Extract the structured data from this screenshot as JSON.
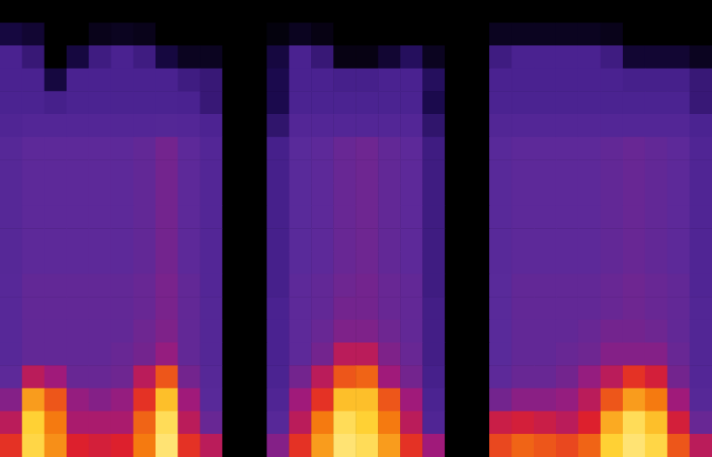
{
  "chart_data": {
    "type": "heatmap",
    "categories": [
      null,
      null,
      null,
      null,
      null,
      null,
      null,
      null,
      null,
      null,
      null,
      null,
      null,
      null,
      null,
      null,
      null,
      null,
      null,
      null,
      null,
      null,
      null,
      null,
      null,
      null,
      null,
      null,
      null,
      null,
      null,
      null
    ],
    "y_categories": [
      null,
      null,
      null,
      null,
      null,
      null,
      null,
      null,
      null,
      null,
      null,
      null,
      null,
      null,
      null,
      null,
      null,
      null,
      null,
      null
    ],
    "cells": [
      [
        0,
        0,
        0,
        0,
        0,
        0,
        0,
        0,
        0,
        0,
        0,
        0,
        0,
        0,
        0,
        0,
        0,
        0,
        0,
        0,
        0,
        0,
        0,
        0,
        0,
        0,
        0,
        0,
        0,
        0,
        0,
        0
      ],
      [
        10,
        8,
        0,
        0,
        4,
        5,
        4,
        0,
        0,
        0,
        0,
        0,
        2,
        5,
        3,
        0,
        0,
        0,
        0,
        0,
        0,
        0,
        5,
        5,
        5,
        5,
        5,
        4,
        0,
        0,
        0,
        0
      ],
      [
        25,
        20,
        0,
        10,
        22,
        25,
        22,
        10,
        5,
        5,
        0,
        0,
        10,
        25,
        20,
        3,
        3,
        8,
        15,
        5,
        0,
        0,
        22,
        25,
        25,
        25,
        25,
        22,
        8,
        8,
        8,
        5
      ],
      [
        25,
        25,
        10,
        25,
        25,
        25,
        25,
        25,
        22,
        20,
        0,
        0,
        12,
        25,
        25,
        24,
        24,
        25,
        25,
        15,
        0,
        0,
        25,
        25,
        25,
        25,
        25,
        25,
        24,
        24,
        24,
        20
      ],
      [
        26,
        26,
        24,
        26,
        26,
        26,
        26,
        26,
        25,
        20,
        0,
        0,
        12,
        26,
        26,
        26,
        26,
        26,
        26,
        12,
        0,
        0,
        26,
        26,
        26,
        26,
        26,
        26,
        26,
        26,
        26,
        20
      ],
      [
        30,
        32,
        32,
        32,
        32,
        32,
        32,
        33,
        32,
        27,
        0,
        0,
        18,
        32,
        32,
        32,
        32,
        32,
        32,
        18,
        0,
        0,
        31,
        32,
        32,
        32,
        32,
        32,
        32,
        32,
        32,
        26
      ],
      [
        34,
        38,
        38,
        38,
        38,
        38,
        39,
        42,
        38,
        32,
        0,
        0,
        24,
        37,
        38,
        40,
        41,
        39,
        38,
        22,
        0,
        0,
        36,
        38,
        38,
        38,
        38,
        39,
        40,
        39,
        38,
        30
      ],
      [
        34,
        38,
        38,
        38,
        38,
        38,
        39,
        42,
        38,
        32,
        0,
        0,
        24,
        37,
        38,
        40,
        41,
        39,
        38,
        22,
        0,
        0,
        36,
        38,
        38,
        38,
        38,
        39,
        40,
        39,
        38,
        30
      ],
      [
        34,
        38,
        38,
        38,
        38,
        38,
        39,
        42,
        38,
        32,
        0,
        0,
        24,
        37,
        38,
        40,
        41,
        39,
        38,
        22,
        0,
        0,
        36,
        38,
        38,
        38,
        38,
        39,
        40,
        39,
        38,
        30
      ],
      [
        34,
        38,
        38,
        38,
        38,
        38,
        39,
        42,
        38,
        32,
        0,
        0,
        24,
        37,
        38,
        40,
        41,
        39,
        38,
        22,
        0,
        0,
        36,
        38,
        38,
        38,
        38,
        39,
        40,
        39,
        38,
        30
      ],
      [
        34,
        38,
        38,
        38,
        38,
        38,
        39,
        42,
        38,
        32,
        0,
        0,
        24,
        37,
        38,
        40,
        41,
        39,
        38,
        22,
        0,
        0,
        36,
        38,
        38,
        38,
        38,
        39,
        40,
        39,
        38,
        30
      ],
      [
        34,
        38,
        38,
        38,
        38,
        38,
        39,
        42,
        38,
        32,
        0,
        0,
        24,
        37,
        38,
        40,
        41,
        39,
        38,
        22,
        0,
        0,
        36,
        38,
        38,
        38,
        38,
        39,
        40,
        39,
        38,
        30
      ],
      [
        35,
        39,
        39,
        39,
        39,
        39,
        40,
        43,
        39,
        32,
        0,
        0,
        24,
        38,
        39,
        41,
        42,
        40,
        39,
        22,
        0,
        0,
        37,
        39,
        39,
        39,
        39,
        40,
        41,
        40,
        39,
        30
      ],
      [
        35,
        39,
        39,
        39,
        39,
        39,
        40,
        43,
        39,
        33,
        0,
        0,
        25,
        38,
        39,
        42,
        42,
        40,
        39,
        23,
        0,
        0,
        37,
        39,
        39,
        39,
        39,
        40,
        41,
        40,
        39,
        31
      ],
      [
        35,
        39,
        39,
        39,
        39,
        39,
        41,
        44,
        39,
        33,
        0,
        0,
        25,
        38,
        40,
        44,
        44,
        41,
        39,
        23,
        0,
        0,
        37,
        39,
        39,
        39,
        40,
        42,
        42,
        41,
        39,
        31
      ],
      [
        35,
        39,
        39,
        39,
        39,
        40,
        42,
        48,
        39,
        33,
        0,
        0,
        25,
        38,
        42,
        55,
        55,
        44,
        40,
        23,
        0,
        0,
        37,
        39,
        39,
        40,
        41,
        45,
        45,
        45,
        40,
        31
      ],
      [
        38,
        55,
        50,
        40,
        40,
        41,
        55,
        70,
        42,
        34,
        0,
        0,
        26,
        42,
        55,
        70,
        72,
        50,
        42,
        24,
        0,
        0,
        38,
        40,
        40,
        42,
        48,
        55,
        65,
        60,
        42,
        32
      ],
      [
        45,
        80,
        70,
        48,
        45,
        48,
        65,
        85,
        50,
        36,
        0,
        0,
        30,
        50,
        65,
        85,
        85,
        70,
        50,
        26,
        0,
        0,
        42,
        46,
        46,
        48,
        55,
        70,
        80,
        75,
        50,
        34
      ],
      [
        55,
        88,
        75,
        52,
        52,
        52,
        72,
        92,
        55,
        40,
        0,
        0,
        35,
        55,
        75,
        92,
        88,
        75,
        55,
        30,
        0,
        0,
        58,
        60,
        58,
        55,
        62,
        82,
        92,
        85,
        60,
        40
      ],
      [
        65,
        90,
        78,
        62,
        60,
        62,
        75,
        95,
        65,
        55,
        0,
        0,
        45,
        65,
        80,
        95,
        92,
        80,
        65,
        50,
        0,
        0,
        68,
        72,
        70,
        68,
        72,
        88,
        95,
        90,
        70,
        55
      ]
    ],
    "zlim": [
      0,
      100
    ],
    "tick_labels": false
  }
}
